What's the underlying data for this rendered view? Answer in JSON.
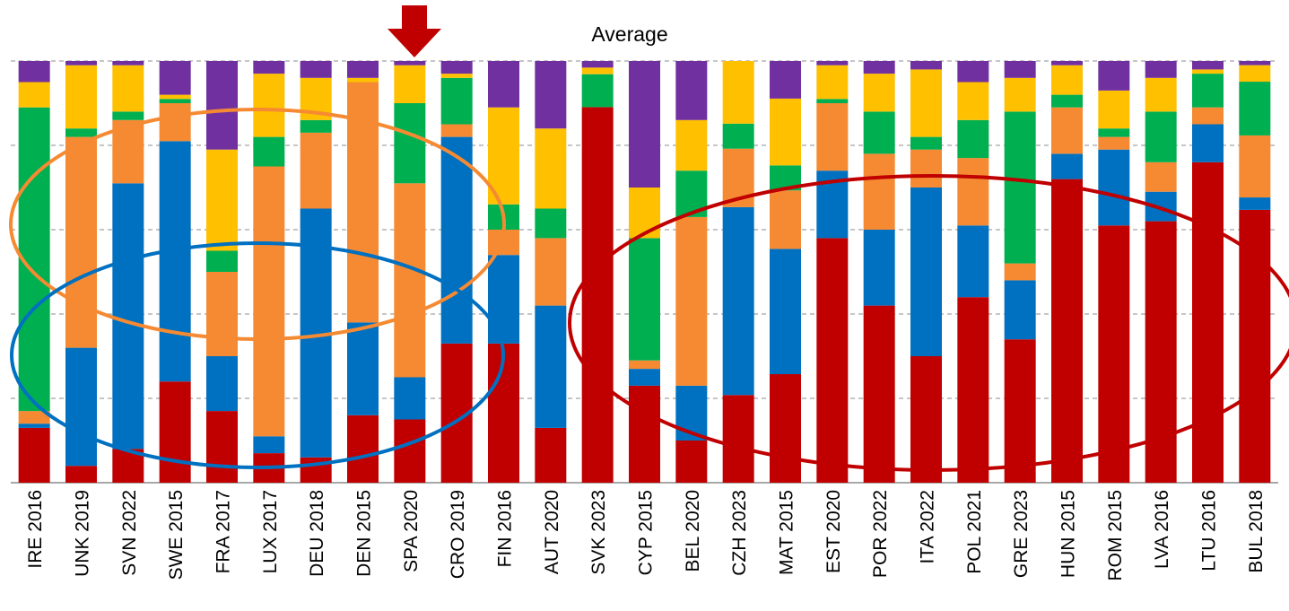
{
  "chart_data": {
    "type": "bar",
    "stacked": true,
    "normalized": true,
    "categories": [
      "IRE 2016",
      "UNK 2019",
      "SVN 2022",
      "SWE 2015",
      "FRA 2017",
      "LUX 2017",
      "DEU 2018",
      "DEN 2015",
      "SPA 2020",
      "CRO 2019",
      "FIN 2016",
      "AUT 2020",
      "SVK 2023",
      "CYP 2015",
      "BEL 2020",
      "CZH 2023",
      "MAT 2015",
      "EST 2020",
      "POR 2022",
      "ITA 2022",
      "POL 2021",
      "GRE 2023",
      "HUN 2015",
      "ROM 2015",
      "LVA 2016",
      "LTU 2016",
      "BUL 2018"
    ],
    "series": [
      {
        "color": "#c00000",
        "values": [
          13,
          4,
          8,
          24,
          17,
          7,
          6,
          16,
          15,
          33,
          33,
          13,
          57,
          23,
          10,
          21,
          26,
          58,
          42,
          30,
          44,
          34,
          72,
          61,
          62,
          76,
          66
        ]
      },
      {
        "color": "#0070c0",
        "values": [
          1,
          28,
          63,
          57,
          13,
          4,
          59,
          22,
          10,
          49,
          21,
          29,
          0,
          4,
          13,
          45,
          30,
          16,
          18,
          40,
          17,
          14,
          6,
          18,
          7,
          9,
          3
        ]
      },
      {
        "color": "#f58a32",
        "values": [
          3,
          50,
          15,
          9,
          20,
          64,
          18,
          57,
          46,
          3,
          6,
          16,
          0,
          2,
          40,
          14,
          14,
          16,
          18,
          9,
          16,
          4,
          11,
          3,
          7,
          4,
          15
        ]
      },
      {
        "color": "#00b050",
        "values": [
          72,
          2,
          2,
          1,
          5,
          7,
          3,
          0,
          19,
          11,
          6,
          7,
          5,
          29,
          11,
          6,
          6,
          1,
          10,
          3,
          9,
          36,
          3,
          2,
          12,
          8,
          13
        ]
      },
      {
        "color": "#ffc000",
        "values": [
          6,
          15,
          11,
          1,
          24,
          15,
          10,
          1,
          9,
          1,
          23,
          19,
          1,
          12,
          12,
          15,
          16,
          8,
          9,
          16,
          9,
          8,
          7,
          9,
          8,
          1,
          4
        ]
      },
      {
        "color": "#7030a0",
        "values": [
          5,
          1,
          1,
          8,
          21,
          3,
          4,
          4,
          1,
          3,
          11,
          16,
          1,
          30,
          14,
          0,
          9,
          1,
          3,
          2,
          5,
          4,
          1,
          7,
          4,
          2,
          1
        ]
      }
    ]
  },
  "annotations": {
    "average_label": "Average",
    "arrow_color": "#c00000",
    "ellipse_colors": [
      "#f58a32",
      "#0070c0",
      "#c00000"
    ]
  }
}
